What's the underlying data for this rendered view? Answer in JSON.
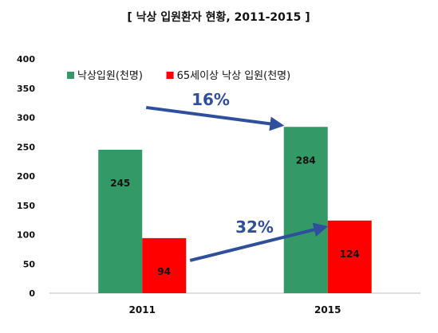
{
  "chart_data": {
    "type": "bar",
    "title": "[ 낙상 입원환자 현황, 2011-2015 ]",
    "categories": [
      "2011",
      "2015"
    ],
    "series": [
      {
        "name": "낙상입원(천명)",
        "values": [
          245,
          284
        ],
        "color": "#339966"
      },
      {
        "name": "65세이상 낙상 입원(천명)",
        "values": [
          94,
          124
        ],
        "color": "#ff0000"
      }
    ],
    "ylim": [
      0,
      400
    ],
    "yticks": [
      0,
      50,
      100,
      150,
      200,
      250,
      300,
      350,
      400
    ],
    "grid": false,
    "legend": "top-left",
    "annotations": [
      {
        "text": "16%",
        "series": "낙상입원(천명)",
        "from": "2011",
        "to": "2015",
        "color": "#2f4f9e"
      },
      {
        "text": "32%",
        "series": "65세이상 낙상 입원(천명)",
        "from": "2011",
        "to": "2015",
        "color": "#2f4f9e"
      }
    ]
  }
}
